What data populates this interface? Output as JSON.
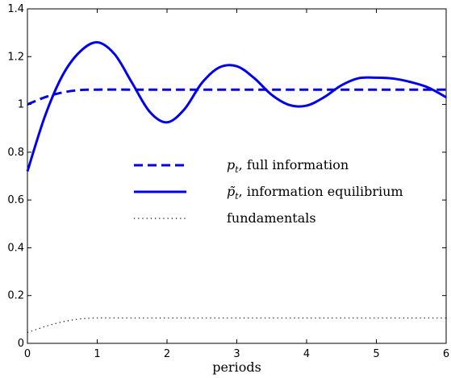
{
  "chart_data": {
    "type": "line",
    "title": "",
    "xlabel": "periods",
    "ylabel": "",
    "xlim": [
      0,
      6
    ],
    "ylim": [
      0,
      1.4
    ],
    "xticks": [
      "0",
      "1",
      "2",
      "3",
      "4",
      "5",
      "6"
    ],
    "yticks": [
      "0",
      "0.2",
      "0.4",
      "0.6",
      "0.8",
      "1",
      "1.2",
      "1.4"
    ],
    "grid": false,
    "legend_position": "center",
    "series": [
      {
        "name": "p_t, full information",
        "legend_sym": "p",
        "legend_sub": "t",
        "legend_rest": ", full information",
        "style": "dashed",
        "color": "#0000ee",
        "x": [
          0,
          0.25,
          0.5,
          0.75,
          1,
          1.5,
          2,
          3,
          4,
          5,
          6
        ],
        "y": [
          1.0,
          1.03,
          1.05,
          1.06,
          1.062,
          1.062,
          1.062,
          1.062,
          1.062,
          1.062,
          1.062
        ]
      },
      {
        "name": "p̃_t, information equilibrium",
        "legend_sym": "p̃",
        "legend_sub": "t",
        "legend_rest": ", information equilibrium",
        "style": "solid",
        "color": "#0000ee",
        "x": [
          0,
          0.25,
          0.5,
          0.75,
          1,
          1.25,
          1.5,
          1.75,
          2,
          2.25,
          2.5,
          2.75,
          3,
          3.25,
          3.5,
          3.75,
          4,
          4.25,
          4.5,
          4.75,
          5,
          5.25,
          5.5,
          5.75,
          6
        ],
        "y": [
          0.72,
          0.95,
          1.12,
          1.22,
          1.26,
          1.21,
          1.09,
          0.97,
          0.925,
          0.98,
          1.09,
          1.155,
          1.16,
          1.11,
          1.04,
          0.998,
          0.995,
          1.03,
          1.08,
          1.11,
          1.112,
          1.108,
          1.093,
          1.07,
          1.03
        ]
      },
      {
        "name": "fundamentals",
        "legend_sym": "",
        "legend_sub": "",
        "legend_rest": "fundamentals",
        "style": "dotted",
        "color": "#000000",
        "x": [
          0,
          0.25,
          0.5,
          0.75,
          1,
          1.5,
          2,
          3,
          4,
          5,
          6
        ],
        "y": [
          0.045,
          0.07,
          0.09,
          0.102,
          0.106,
          0.106,
          0.106,
          0.106,
          0.106,
          0.106,
          0.106
        ]
      }
    ]
  }
}
